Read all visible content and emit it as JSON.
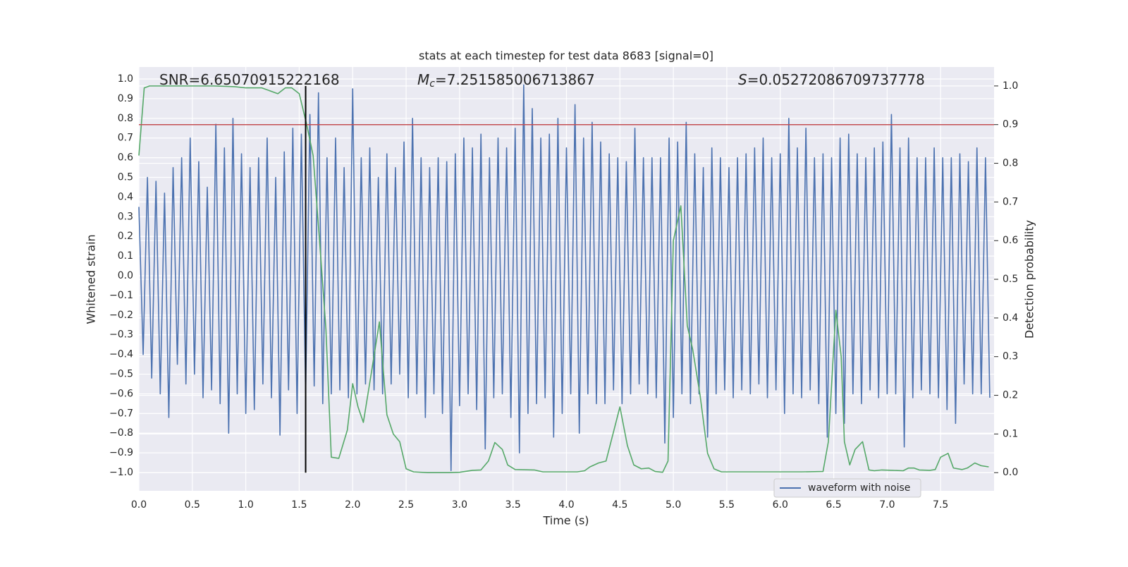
{
  "chart_data": {
    "type": "line",
    "title": "stats at each timestep for test data 8683 [signal=0]",
    "xlabel": "Time (s)",
    "ylabel": "Whitened strain",
    "y2label": "Detection probability",
    "annotations": [
      {
        "text": "SNR=6.65070915222168"
      },
      {
        "symbol": "M",
        "subscript": "c",
        "text": "=7.251585006713867"
      },
      {
        "symbol": "S",
        "text": "=0.05272086709737778"
      }
    ],
    "xlim": [
      0,
      8
    ],
    "ylim": [
      -1.093,
      1.061
    ],
    "y2lim": [
      -0.047,
      1.049
    ],
    "xticks": [
      {
        "value": 0,
        "label": "0.0"
      },
      {
        "value": 0.5,
        "label": "0.5"
      },
      {
        "value": 1,
        "label": "1.0"
      },
      {
        "value": 1.5,
        "label": "1.5"
      },
      {
        "value": 2,
        "label": "2.0"
      },
      {
        "value": 2.5,
        "label": "2.5"
      },
      {
        "value": 3,
        "label": "3.0"
      },
      {
        "value": 3.5,
        "label": "3.5"
      },
      {
        "value": 4,
        "label": "4.0"
      },
      {
        "value": 4.5,
        "label": "4.5"
      },
      {
        "value": 5,
        "label": "5.0"
      },
      {
        "value": 5.5,
        "label": "5.5"
      },
      {
        "value": 6,
        "label": "6.0"
      },
      {
        "value": 6.5,
        "label": "6.5"
      },
      {
        "value": 7,
        "label": "7.0"
      },
      {
        "value": 7.5,
        "label": "7.5"
      }
    ],
    "yticks": [
      {
        "value": -1,
        "label": "−1.0"
      },
      {
        "value": -0.9,
        "label": "−0.9"
      },
      {
        "value": -0.8,
        "label": "−0.8"
      },
      {
        "value": -0.7,
        "label": "−0.7"
      },
      {
        "value": -0.6,
        "label": "−0.6"
      },
      {
        "value": -0.5,
        "label": "−0.5"
      },
      {
        "value": -0.4,
        "label": "−0.4"
      },
      {
        "value": -0.3,
        "label": "−0.3"
      },
      {
        "value": -0.2,
        "label": "−0.2"
      },
      {
        "value": -0.1,
        "label": "−0.1"
      },
      {
        "value": 0,
        "label": "0.0"
      },
      {
        "value": 0.1,
        "label": "0.1"
      },
      {
        "value": 0.2,
        "label": "0.2"
      },
      {
        "value": 0.3,
        "label": "0.3"
      },
      {
        "value": 0.4,
        "label": "0.4"
      },
      {
        "value": 0.5,
        "label": "0.5"
      },
      {
        "value": 0.6,
        "label": "0.6"
      },
      {
        "value": 0.7,
        "label": "0.7"
      },
      {
        "value": 0.8,
        "label": "0.8"
      },
      {
        "value": 0.9,
        "label": "0.9"
      },
      {
        "value": 1,
        "label": "1.0"
      }
    ],
    "y2ticks": [
      {
        "value": 0,
        "label": "0.0"
      },
      {
        "value": 0.1,
        "label": "0.1"
      },
      {
        "value": 0.2,
        "label": "0.2"
      },
      {
        "value": 0.3,
        "label": "0.3"
      },
      {
        "value": 0.4,
        "label": "0.4"
      },
      {
        "value": 0.5,
        "label": "0.5"
      },
      {
        "value": 0.6,
        "label": "0.6"
      },
      {
        "value": 0.7,
        "label": "0.7"
      },
      {
        "value": 0.8,
        "label": "0.8"
      },
      {
        "value": 0.9,
        "label": "0.9"
      },
      {
        "value": 1,
        "label": "1.0"
      }
    ],
    "grid": true,
    "legend": "lower right",
    "hline": {
      "value": 0.9,
      "axis": "y2",
      "color": "#c44e52"
    },
    "vline": {
      "x": 1.56,
      "y2range": [
        0,
        1
      ],
      "color": "#000000"
    },
    "series": [
      {
        "name": "waveform with noise",
        "color": "#4c72b0",
        "x": [
          0,
          0.04,
          0.08,
          0.12,
          0.16,
          0.2,
          0.24,
          0.28,
          0.32,
          0.36,
          0.4,
          0.44,
          0.48,
          0.52,
          0.56,
          0.6,
          0.64,
          0.68,
          0.72,
          0.76,
          0.8,
          0.84,
          0.88,
          0.92,
          0.96,
          1,
          1.04,
          1.08,
          1.12,
          1.16,
          1.2,
          1.24,
          1.28,
          1.32,
          1.36,
          1.4,
          1.44,
          1.48,
          1.52,
          1.56,
          1.6,
          1.64,
          1.68,
          1.72,
          1.76,
          1.8,
          1.84,
          1.88,
          1.92,
          1.96,
          2,
          2.04,
          2.08,
          2.12,
          2.16,
          2.2,
          2.24,
          2.28,
          2.32,
          2.36,
          2.4,
          2.44,
          2.48,
          2.52,
          2.56,
          2.6,
          2.64,
          2.68,
          2.72,
          2.76,
          2.8,
          2.84,
          2.88,
          2.92,
          2.96,
          3,
          3.04,
          3.08,
          3.12,
          3.16,
          3.2,
          3.24,
          3.28,
          3.32,
          3.36,
          3.4,
          3.44,
          3.48,
          3.52,
          3.56,
          3.6,
          3.64,
          3.68,
          3.72,
          3.76,
          3.8,
          3.84,
          3.88,
          3.92,
          3.96,
          4,
          4.04,
          4.08,
          4.12,
          4.16,
          4.2,
          4.24,
          4.28,
          4.32,
          4.36,
          4.4,
          4.44,
          4.48,
          4.52,
          4.56,
          4.6,
          4.64,
          4.68,
          4.72,
          4.76,
          4.8,
          4.84,
          4.88,
          4.92,
          4.96,
          5,
          5.04,
          5.08,
          5.12,
          5.16,
          5.2,
          5.24,
          5.28,
          5.32,
          5.36,
          5.4,
          5.44,
          5.48,
          5.52,
          5.56,
          5.6,
          5.64,
          5.68,
          5.72,
          5.76,
          5.8,
          5.84,
          5.88,
          5.92,
          5.96,
          6,
          6.04,
          6.08,
          6.12,
          6.16,
          6.2,
          6.24,
          6.28,
          6.32,
          6.36,
          6.4,
          6.44,
          6.48,
          6.52,
          6.56,
          6.6,
          6.64,
          6.68,
          6.72,
          6.76,
          6.8,
          6.84,
          6.88,
          6.92,
          6.96,
          7,
          7.04,
          7.08,
          7.12,
          7.16,
          7.2,
          7.24,
          7.28,
          7.32,
          7.36,
          7.4,
          7.44,
          7.48,
          7.52,
          7.56,
          7.6,
          7.64,
          7.68,
          7.72,
          7.76,
          7.8,
          7.84,
          7.88,
          7.92,
          7.96
        ],
        "values": [
          0.35,
          -0.4,
          0.5,
          -0.52,
          0.48,
          -0.6,
          0.42,
          -0.72,
          0.55,
          -0.45,
          0.6,
          -0.55,
          0.7,
          -0.5,
          0.58,
          -0.62,
          0.45,
          -0.58,
          0.77,
          -0.65,
          0.65,
          -0.8,
          0.8,
          -0.6,
          0.62,
          -0.7,
          0.55,
          -0.68,
          0.6,
          -0.55,
          0.7,
          -0.62,
          0.5,
          -0.81,
          0.63,
          -0.58,
          0.75,
          -0.7,
          0.72,
          -0.6,
          0.82,
          -0.56,
          0.93,
          -0.65,
          0.6,
          -0.6,
          0.7,
          -0.58,
          0.55,
          -0.62,
          0.95,
          -0.6,
          0.6,
          -0.55,
          0.65,
          -0.58,
          0.5,
          -0.6,
          0.62,
          -0.55,
          0.55,
          -0.5,
          0.68,
          -0.62,
          0.8,
          -0.6,
          0.6,
          -0.72,
          0.55,
          -0.6,
          0.6,
          -0.7,
          0.58,
          -0.99,
          0.62,
          -0.66,
          0.7,
          -0.6,
          0.65,
          -0.68,
          0.72,
          -0.88,
          0.6,
          -0.62,
          0.7,
          -0.6,
          0.65,
          -0.72,
          0.75,
          -0.9,
          0.97,
          -0.7,
          0.85,
          -0.65,
          0.7,
          -0.62,
          0.72,
          -0.82,
          0.8,
          -0.7,
          0.65,
          -0.6,
          0.87,
          -0.8,
          0.7,
          -0.6,
          0.78,
          -0.65,
          0.68,
          -0.65,
          0.62,
          -0.58,
          0.6,
          -0.65,
          0.58,
          -0.6,
          0.75,
          -0.55,
          0.6,
          -0.6,
          0.6,
          -0.62,
          0.6,
          -0.85,
          0.7,
          -0.72,
          0.68,
          -0.6,
          0.78,
          -0.65,
          0.62,
          -0.6,
          0.55,
          -0.82,
          0.65,
          -0.6,
          0.6,
          -0.58,
          0.55,
          -0.62,
          0.6,
          -0.58,
          0.62,
          -0.6,
          0.65,
          -0.55,
          0.7,
          -0.62,
          0.6,
          -0.58,
          0.62,
          -0.7,
          0.8,
          -0.6,
          0.65,
          -0.62,
          0.75,
          -0.58,
          0.6,
          -0.65,
          0.62,
          -0.82,
          0.6,
          -0.7,
          0.7,
          -0.75,
          0.72,
          -0.6,
          0.62,
          -0.65,
          0.6,
          -0.58,
          0.65,
          -0.62,
          0.68,
          -0.6,
          0.82,
          -0.6,
          0.65,
          -0.87,
          0.7,
          -0.62,
          0.6,
          -0.58,
          0.6,
          -0.6,
          0.65,
          -0.62,
          0.6,
          -0.68,
          0.6,
          -0.75,
          0.62,
          -0.55,
          0.58,
          -0.6,
          0.65,
          -0.6,
          0.6,
          -0.62
        ]
      },
      {
        "color": "#55a868",
        "axis": "y2",
        "x": [
          0,
          0.05,
          0.1,
          0.3,
          0.5,
          0.7,
          0.9,
          1,
          1.15,
          1.3,
          1.37,
          1.43,
          1.5,
          1.57,
          1.63,
          1.69,
          1.75,
          1.8,
          1.87,
          1.95,
          2,
          2.05,
          2.1,
          2.17,
          2.25,
          2.32,
          2.38,
          2.44,
          2.5,
          2.57,
          2.7,
          2.9,
          3,
          3.12,
          3.2,
          3.27,
          3.33,
          3.4,
          3.45,
          3.52,
          3.7,
          3.78,
          4.1,
          4.17,
          4.22,
          4.3,
          4.37,
          4.5,
          4.57,
          4.63,
          4.7,
          4.77,
          4.83,
          4.9,
          4.95,
          5,
          5.07,
          5.13,
          5.18,
          5.25,
          5.32,
          5.38,
          5.45,
          6,
          6.2,
          6.4,
          6.45,
          6.52,
          6.57,
          6.6,
          6.65,
          6.7,
          6.77,
          6.83,
          6.88,
          6.95,
          7.05,
          7.15,
          7.2,
          7.25,
          7.3,
          7.4,
          7.45,
          7.5,
          7.57,
          7.62,
          7.7,
          7.75,
          7.82,
          7.88,
          7.95
        ],
        "values": [
          0.82,
          0.995,
          1.0,
          1.0,
          1.0,
          1.0,
          0.998,
          0.995,
          0.995,
          0.98,
          0.995,
          0.995,
          0.98,
          0.9,
          0.82,
          0.6,
          0.37,
          0.04,
          0.037,
          0.11,
          0.23,
          0.17,
          0.13,
          0.25,
          0.39,
          0.15,
          0.1,
          0.08,
          0.01,
          0.002,
          0.0,
          0.0,
          0.001,
          0.006,
          0.007,
          0.03,
          0.078,
          0.06,
          0.02,
          0.008,
          0.007,
          0.002,
          0.002,
          0.005,
          0.015,
          0.025,
          0.03,
          0.17,
          0.07,
          0.02,
          0.01,
          0.012,
          0.003,
          0.001,
          0.03,
          0.6,
          0.69,
          0.38,
          0.32,
          0.2,
          0.05,
          0.01,
          0.002,
          0.002,
          0.002,
          0.003,
          0.08,
          0.42,
          0.3,
          0.08,
          0.02,
          0.06,
          0.08,
          0.007,
          0.005,
          0.007,
          0.006,
          0.005,
          0.012,
          0.012,
          0.007,
          0.006,
          0.008,
          0.04,
          0.05,
          0.012,
          0.008,
          0.012,
          0.025,
          0.018,
          0.015
        ]
      }
    ]
  }
}
